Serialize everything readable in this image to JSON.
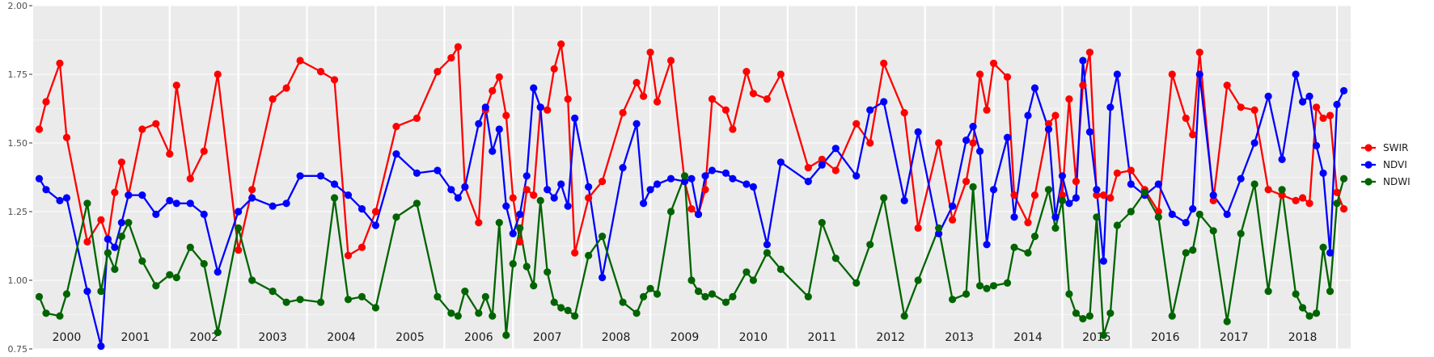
{
  "chart_data": {
    "type": "line",
    "title": "",
    "xlabel": "",
    "ylabel": "",
    "ylim": [
      0.75,
      2.0
    ],
    "xlim": [
      2000.0,
      2019.2
    ],
    "yticks": [
      "0.75",
      "1.00",
      "1.25",
      "1.50",
      "1.75",
      "2.00"
    ],
    "year_labels": [
      "2000",
      "2001",
      "2002",
      "2003",
      "2004",
      "2005",
      "2006",
      "2007",
      "2008",
      "2009",
      "2010",
      "2011",
      "2012",
      "2013",
      "2014",
      "2015",
      "2016",
      "2017",
      "2018"
    ],
    "grid": true,
    "legend_position": "right",
    "series": [
      {
        "name": "SWIR",
        "color": "#ff0000",
        "x": [
          2000.1,
          2000.2,
          2000.4,
          2000.5,
          2000.8,
          2001.0,
          2001.1,
          2001.2,
          2001.3,
          2001.4,
          2001.6,
          2001.8,
          2002.0,
          2002.1,
          2002.3,
          2002.5,
          2002.7,
          2003.0,
          2003.2,
          2003.5,
          2003.7,
          2003.9,
          2004.2,
          2004.4,
          2004.6,
          2004.8,
          2005.0,
          2005.3,
          2005.6,
          2005.9,
          2006.1,
          2006.2,
          2006.3,
          2006.5,
          2006.6,
          2006.7,
          2006.8,
          2006.9,
          2007.0,
          2007.1,
          2007.2,
          2007.3,
          2007.4,
          2007.5,
          2007.6,
          2007.7,
          2007.8,
          2007.9,
          2008.1,
          2008.3,
          2008.6,
          2008.8,
          2008.9,
          2009.0,
          2009.1,
          2009.3,
          2009.5,
          2009.6,
          2009.7,
          2009.8,
          2009.9,
          2010.1,
          2010.2,
          2010.4,
          2010.5,
          2010.7,
          2010.9,
          2011.3,
          2011.5,
          2011.7,
          2012.0,
          2012.2,
          2012.4,
          2012.7,
          2012.9,
          2013.2,
          2013.4,
          2013.6,
          2013.7,
          2013.8,
          2013.9,
          2014.0,
          2014.2,
          2014.3,
          2014.5,
          2014.6,
          2014.8,
          2014.9,
          2015.0,
          2015.1,
          2015.2,
          2015.3,
          2015.4,
          2015.5,
          2015.6,
          2015.7,
          2015.8,
          2016.0,
          2016.2,
          2016.4,
          2016.6,
          2016.8,
          2016.9,
          2017.0,
          2017.2,
          2017.4,
          2017.6,
          2017.8,
          2018.0,
          2018.2,
          2018.4,
          2018.5,
          2018.6,
          2018.7,
          2018.8,
          2018.9,
          2019.0,
          2019.1
        ],
        "y": [
          1.55,
          1.65,
          1.79,
          1.52,
          1.14,
          1.22,
          1.15,
          1.32,
          1.43,
          1.31,
          1.55,
          1.57,
          1.46,
          1.71,
          1.37,
          1.47,
          1.75,
          1.11,
          1.33,
          1.66,
          1.7,
          1.8,
          1.76,
          1.73,
          1.09,
          1.12,
          1.25,
          1.56,
          1.59,
          1.76,
          1.81,
          1.85,
          1.34,
          1.21,
          1.62,
          1.69,
          1.74,
          1.6,
          1.3,
          1.14,
          1.33,
          1.31,
          1.63,
          1.62,
          1.77,
          1.86,
          1.66,
          1.1,
          1.3,
          1.36,
          1.61,
          1.72,
          1.67,
          1.83,
          1.65,
          1.8,
          1.36,
          1.26,
          1.24,
          1.33,
          1.66,
          1.62,
          1.55,
          1.76,
          1.68,
          1.66,
          1.75,
          1.41,
          1.44,
          1.4,
          1.57,
          1.5,
          1.79,
          1.61,
          1.19,
          1.5,
          1.22,
          1.36,
          1.5,
          1.75,
          1.62,
          1.79,
          1.74,
          1.31,
          1.21,
          1.31,
          1.57,
          1.6,
          1.31,
          1.66,
          1.36,
          1.71,
          1.83,
          1.31,
          1.31,
          1.3,
          1.39,
          1.4,
          1.33,
          1.25,
          1.75,
          1.59,
          1.53,
          1.83,
          1.29,
          1.71,
          1.63,
          1.62,
          1.33,
          1.31,
          1.29,
          1.3,
          1.28,
          1.63,
          1.59,
          1.6,
          1.32,
          1.26
        ]
      },
      {
        "name": "NDVI",
        "color": "#0000ff",
        "x": [
          2000.1,
          2000.2,
          2000.4,
          2000.5,
          2000.8,
          2001.0,
          2001.1,
          2001.2,
          2001.3,
          2001.4,
          2001.6,
          2001.8,
          2002.0,
          2002.1,
          2002.3,
          2002.5,
          2002.7,
          2003.0,
          2003.2,
          2003.5,
          2003.7,
          2003.9,
          2004.2,
          2004.4,
          2004.6,
          2004.8,
          2005.0,
          2005.3,
          2005.6,
          2005.9,
          2006.1,
          2006.2,
          2006.3,
          2006.5,
          2006.6,
          2006.7,
          2006.8,
          2006.9,
          2007.0,
          2007.1,
          2007.2,
          2007.3,
          2007.4,
          2007.5,
          2007.6,
          2007.7,
          2007.8,
          2007.9,
          2008.1,
          2008.3,
          2008.6,
          2008.8,
          2008.9,
          2009.0,
          2009.1,
          2009.3,
          2009.5,
          2009.6,
          2009.7,
          2009.8,
          2009.9,
          2010.1,
          2010.2,
          2010.4,
          2010.5,
          2010.7,
          2010.9,
          2011.3,
          2011.5,
          2011.7,
          2012.0,
          2012.2,
          2012.4,
          2012.7,
          2012.9,
          2013.2,
          2013.4,
          2013.6,
          2013.7,
          2013.8,
          2013.9,
          2014.0,
          2014.2,
          2014.3,
          2014.5,
          2014.6,
          2014.8,
          2014.9,
          2015.0,
          2015.1,
          2015.2,
          2015.3,
          2015.4,
          2015.5,
          2015.6,
          2015.7,
          2015.8,
          2016.0,
          2016.2,
          2016.4,
          2016.6,
          2016.8,
          2016.9,
          2017.0,
          2017.2,
          2017.4,
          2017.6,
          2017.8,
          2018.0,
          2018.2,
          2018.4,
          2018.5,
          2018.6,
          2018.7,
          2018.8,
          2018.9,
          2019.0,
          2019.1
        ],
        "y": [
          1.37,
          1.33,
          1.29,
          1.3,
          0.96,
          0.76,
          1.15,
          1.12,
          1.21,
          1.31,
          1.31,
          1.24,
          1.29,
          1.28,
          1.28,
          1.24,
          1.03,
          1.25,
          1.3,
          1.27,
          1.28,
          1.38,
          1.38,
          1.35,
          1.31,
          1.26,
          1.2,
          1.46,
          1.39,
          1.4,
          1.33,
          1.3,
          1.34,
          1.57,
          1.63,
          1.47,
          1.55,
          1.27,
          1.17,
          1.24,
          1.38,
          1.7,
          1.63,
          1.33,
          1.3,
          1.35,
          1.27,
          1.59,
          1.34,
          1.01,
          1.41,
          1.57,
          1.28,
          1.33,
          1.35,
          1.37,
          1.36,
          1.37,
          1.24,
          1.38,
          1.4,
          1.39,
          1.37,
          1.35,
          1.34,
          1.13,
          1.43,
          1.36,
          1.42,
          1.48,
          1.38,
          1.62,
          1.65,
          1.29,
          1.54,
          1.17,
          1.27,
          1.51,
          1.56,
          1.47,
          1.13,
          1.33,
          1.52,
          1.23,
          1.6,
          1.7,
          1.55,
          1.23,
          1.38,
          1.28,
          1.3,
          1.8,
          1.54,
          1.33,
          1.07,
          1.63,
          1.75,
          1.35,
          1.31,
          1.35,
          1.24,
          1.21,
          1.26,
          1.75,
          1.31,
          1.24,
          1.37,
          1.5,
          1.67,
          1.44,
          1.75,
          1.65,
          1.67,
          1.49,
          1.39,
          1.1,
          1.64,
          1.69
        ]
      },
      {
        "name": "NDWI",
        "color": "#006400",
        "x": [
          2000.1,
          2000.2,
          2000.4,
          2000.5,
          2000.8,
          2001.0,
          2001.1,
          2001.2,
          2001.3,
          2001.4,
          2001.6,
          2001.8,
          2002.0,
          2002.1,
          2002.3,
          2002.5,
          2002.7,
          2003.0,
          2003.2,
          2003.5,
          2003.7,
          2003.9,
          2004.2,
          2004.4,
          2004.6,
          2004.8,
          2005.0,
          2005.3,
          2005.6,
          2005.9,
          2006.1,
          2006.2,
          2006.3,
          2006.5,
          2006.6,
          2006.7,
          2006.8,
          2006.9,
          2007.0,
          2007.1,
          2007.2,
          2007.3,
          2007.4,
          2007.5,
          2007.6,
          2007.7,
          2007.8,
          2007.9,
          2008.1,
          2008.3,
          2008.6,
          2008.8,
          2008.9,
          2009.0,
          2009.1,
          2009.3,
          2009.5,
          2009.6,
          2009.7,
          2009.8,
          2009.9,
          2010.1,
          2010.2,
          2010.4,
          2010.5,
          2010.7,
          2010.9,
          2011.3,
          2011.5,
          2011.7,
          2012.0,
          2012.2,
          2012.4,
          2012.7,
          2012.9,
          2013.2,
          2013.4,
          2013.6,
          2013.7,
          2013.8,
          2013.9,
          2014.0,
          2014.2,
          2014.3,
          2014.5,
          2014.6,
          2014.8,
          2014.9,
          2015.0,
          2015.1,
          2015.2,
          2015.3,
          2015.4,
          2015.5,
          2015.6,
          2015.7,
          2015.8,
          2016.0,
          2016.2,
          2016.4,
          2016.6,
          2016.8,
          2016.9,
          2017.0,
          2017.2,
          2017.4,
          2017.6,
          2017.8,
          2018.0,
          2018.2,
          2018.4,
          2018.5,
          2018.6,
          2018.7,
          2018.8,
          2018.9,
          2019.0,
          2019.1
        ],
        "y": [
          0.94,
          0.88,
          0.87,
          0.95,
          1.28,
          0.96,
          1.1,
          1.04,
          1.16,
          1.21,
          1.07,
          0.98,
          1.02,
          1.01,
          1.12,
          1.06,
          0.81,
          1.19,
          1.0,
          0.96,
          0.92,
          0.93,
          0.92,
          1.3,
          0.93,
          0.94,
          0.9,
          1.23,
          1.28,
          0.94,
          0.88,
          0.87,
          0.96,
          0.88,
          0.94,
          0.87,
          1.21,
          0.8,
          1.06,
          1.19,
          1.05,
          0.98,
          1.29,
          1.03,
          0.92,
          0.9,
          0.89,
          0.87,
          1.09,
          1.16,
          0.92,
          0.88,
          0.94,
          0.97,
          0.95,
          1.25,
          1.38,
          1.0,
          0.96,
          0.94,
          0.95,
          0.92,
          0.94,
          1.03,
          1.0,
          1.1,
          1.04,
          0.94,
          1.21,
          1.08,
          0.99,
          1.13,
          1.3,
          0.87,
          1.0,
          1.19,
          0.93,
          0.95,
          1.34,
          0.98,
          0.97,
          0.98,
          0.99,
          1.12,
          1.1,
          1.16,
          1.33,
          1.19,
          1.29,
          0.95,
          0.88,
          0.86,
          0.87,
          1.23,
          0.8,
          0.88,
          1.2,
          1.25,
          1.32,
          1.23,
          0.87,
          1.1,
          1.11,
          1.24,
          1.18,
          0.85,
          1.17,
          1.35,
          0.96,
          1.33,
          0.95,
          0.9,
          0.87,
          0.88,
          1.12,
          0.96,
          1.28,
          1.37
        ]
      }
    ]
  }
}
